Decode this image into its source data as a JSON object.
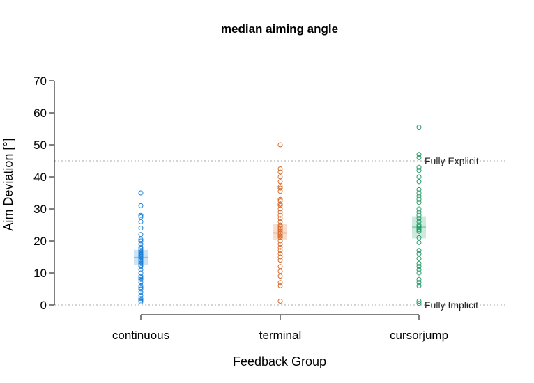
{
  "chart_data": {
    "type": "scatter",
    "title": "median aiming angle",
    "xlabel": "Feedback Group",
    "ylabel": "Aim Deviation [°]",
    "ylim": [
      0,
      70
    ],
    "yticks": [
      0,
      10,
      20,
      30,
      40,
      50,
      60,
      70
    ],
    "grid": false,
    "categories": [
      "continuous",
      "terminal",
      "cursorjump"
    ],
    "reference_lines": [
      {
        "label": "Fully Explicit",
        "y": 45
      },
      {
        "label": "Fully Implicit",
        "y": 0
      }
    ],
    "series": [
      {
        "category": "continuous",
        "color": "#1a7fd6",
        "summary": {
          "mean": 14.8,
          "ci": [
            12.6,
            17.2
          ]
        },
        "values": [
          35,
          31,
          28,
          27.5,
          26,
          24,
          22,
          20.5,
          20,
          19,
          18,
          17.5,
          17,
          16.5,
          16,
          15.8,
          15.5,
          15.2,
          15,
          14.5,
          14,
          13.5,
          13,
          12.5,
          12,
          11,
          10,
          9,
          8.5,
          8,
          7,
          6,
          5.5,
          5,
          4,
          3,
          2,
          1.5,
          1
        ]
      },
      {
        "category": "terminal",
        "color": "#d86a2a",
        "summary": {
          "mean": 22.5,
          "ci": [
            20.3,
            25.2
          ]
        },
        "values": [
          50,
          42.5,
          41.5,
          40,
          38.5,
          37,
          36.5,
          35.5,
          33,
          32.5,
          31.5,
          31,
          30,
          29,
          28,
          27,
          26,
          25,
          24.5,
          24,
          23.5,
          23,
          22.5,
          22,
          21.5,
          21,
          20,
          19,
          18,
          17,
          16,
          15,
          14,
          12,
          10.5,
          9,
          7,
          6,
          1.2
        ]
      },
      {
        "category": "cursorjump",
        "color": "#1e9b63",
        "summary": {
          "mean": 24.3,
          "ci": [
            20.8,
            27.7
          ]
        },
        "values": [
          55.5,
          47,
          46,
          43,
          42,
          40,
          38.5,
          36,
          35,
          34,
          33,
          32,
          30,
          29,
          28,
          27,
          26,
          25,
          24.5,
          24,
          23.5,
          23,
          21,
          19.5,
          17,
          16,
          14.5,
          13,
          12,
          11,
          10,
          8,
          7,
          6,
          1.2,
          0.5
        ]
      }
    ]
  }
}
